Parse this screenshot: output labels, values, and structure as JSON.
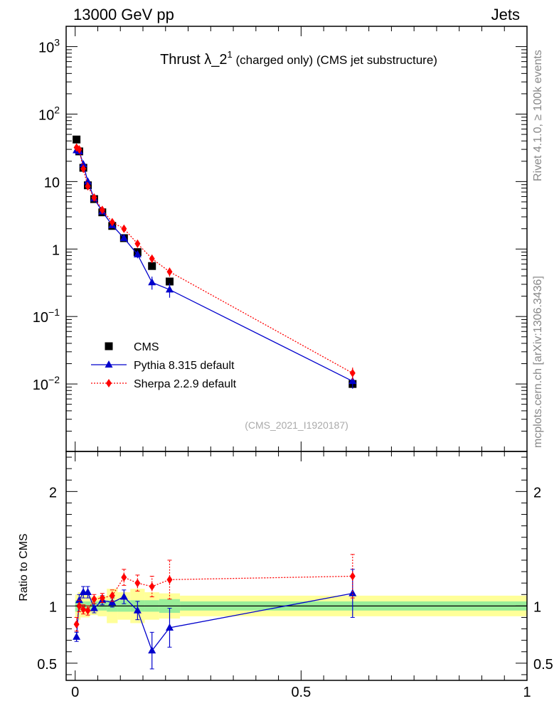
{
  "header": {
    "left": "13000 GeV pp",
    "right": "Jets"
  },
  "side_labels": {
    "rivet": "Rivet 4.1.0, ≥ 100k events",
    "mcplots": "mcplots.cern.ch [arXiv:1306.3436]"
  },
  "chart_data": [
    {
      "type": "scatter",
      "title": "Thrust λ_2¹ (charged only) (CMS jet substructure)",
      "title_main": "Thrust λ_2",
      "title_sup": "1",
      "title_rest": " (charged only) (CMS jet substructure)",
      "watermark": "(CMS_2021_I1920187)",
      "yscale": "log",
      "ylim": [
        0.001,
        2000
      ],
      "xlim": [
        -0.02,
        1.0
      ],
      "ytick_labels": [
        "10−2",
        "10−1",
        "1",
        "10",
        "10²",
        "10³"
      ],
      "ytick_base": "10",
      "ytick_exps": [
        "−2",
        "−1",
        "",
        "",
        "2",
        "3"
      ],
      "ytick_plain": [
        "",
        "",
        "1",
        "10",
        "",
        ""
      ],
      "legend_position": "lower-left",
      "series": [
        {
          "name": "CMS",
          "style": "data",
          "color": "#000000",
          "x": [
            0.003,
            0.009,
            0.018,
            0.028,
            0.042,
            0.06,
            0.082,
            0.108,
            0.138,
            0.17,
            0.209,
            0.614
          ],
          "y": [
            42,
            28,
            16,
            8.8,
            5.5,
            3.5,
            2.2,
            1.45,
            0.9,
            0.56,
            0.33,
            0.01
          ]
        },
        {
          "name": "Pythia 8.315 default",
          "style": "solid",
          "color": "#0000cc",
          "x": [
            0.003,
            0.009,
            0.018,
            0.028,
            0.042,
            0.06,
            0.082,
            0.108,
            0.138,
            0.17,
            0.209,
            0.614
          ],
          "y": [
            29,
            28,
            18,
            10,
            5.6,
            3.6,
            2.25,
            1.45,
            0.83,
            0.32,
            0.25,
            0.011
          ],
          "yerr": [
            1.5,
            1.5,
            1.2,
            0.8,
            0.4,
            0.3,
            0.2,
            0.15,
            0.1,
            0.07,
            0.06,
            0.0025
          ]
        },
        {
          "name": "Sherpa 2.2.9 default",
          "style": "dotted",
          "color": "#ff0000",
          "x": [
            0.003,
            0.009,
            0.018,
            0.028,
            0.042,
            0.06,
            0.082,
            0.108,
            0.138,
            0.17,
            0.209,
            0.614
          ],
          "y": [
            32,
            30,
            15.5,
            8.5,
            5.8,
            3.8,
            2.5,
            2.0,
            1.2,
            0.72,
            0.46,
            0.0145
          ],
          "yerr": [
            1.5,
            1.5,
            1.0,
            0.6,
            0.4,
            0.3,
            0.2,
            0.2,
            0.15,
            0.1,
            0.07,
            0.003
          ]
        }
      ]
    },
    {
      "type": "scatter",
      "ylabel": "Ratio to CMS",
      "ylim": [
        0.35,
        2.35
      ],
      "xlim": [
        -0.02,
        1.0
      ],
      "ytick_labels": [
        "0.5",
        "1",
        "2"
      ],
      "ytick_values": [
        0.5,
        1,
        2
      ],
      "xtick_labels": [
        "0",
        "0.5",
        "1"
      ],
      "xtick_values": [
        0,
        0.5,
        1
      ],
      "reference_line": 1,
      "bands": {
        "edges": [
          0,
          0.006,
          0.012,
          0.024,
          0.032,
          0.05,
          0.07,
          0.094,
          0.122,
          0.154,
          0.186,
          0.232,
          1.0
        ],
        "stat": [
          0.05,
          0.05,
          0.04,
          0.04,
          0.04,
          0.04,
          0.05,
          0.05,
          0.05,
          0.05,
          0.06,
          0.04
        ],
        "total": [
          0.1,
          0.12,
          0.1,
          0.1,
          0.08,
          0.09,
          0.15,
          0.12,
          0.15,
          0.12,
          0.11,
          0.09
        ],
        "stat_color": "#99ee99",
        "total_color": "#ffff99"
      },
      "series": [
        {
          "name": "Pythia 8.315 default",
          "style": "solid",
          "color": "#0000cc",
          "x": [
            0.003,
            0.009,
            0.018,
            0.028,
            0.042,
            0.06,
            0.082,
            0.108,
            0.138,
            0.17,
            0.209,
            0.614
          ],
          "y": [
            0.73,
            1.05,
            1.12,
            1.12,
            0.98,
            1.05,
            1.03,
            1.08,
            0.96,
            0.61,
            0.81,
            1.11
          ],
          "yerr": [
            0.04,
            0.05,
            0.05,
            0.05,
            0.04,
            0.04,
            0.04,
            0.06,
            0.08,
            0.16,
            0.17,
            0.21
          ]
        },
        {
          "name": "Sherpa 2.2.9 default",
          "style": "dotted",
          "color": "#ff0000",
          "x": [
            0.003,
            0.009,
            0.018,
            0.028,
            0.042,
            0.06,
            0.082,
            0.108,
            0.138,
            0.17,
            0.209,
            0.614
          ],
          "y": [
            0.84,
            1.0,
            0.97,
            0.96,
            1.06,
            1.07,
            1.09,
            1.25,
            1.2,
            1.17,
            1.23,
            1.26
          ],
          "yerr": [
            0.06,
            0.05,
            0.04,
            0.04,
            0.04,
            0.04,
            0.05,
            0.07,
            0.07,
            0.09,
            0.17,
            0.19
          ]
        }
      ]
    }
  ]
}
